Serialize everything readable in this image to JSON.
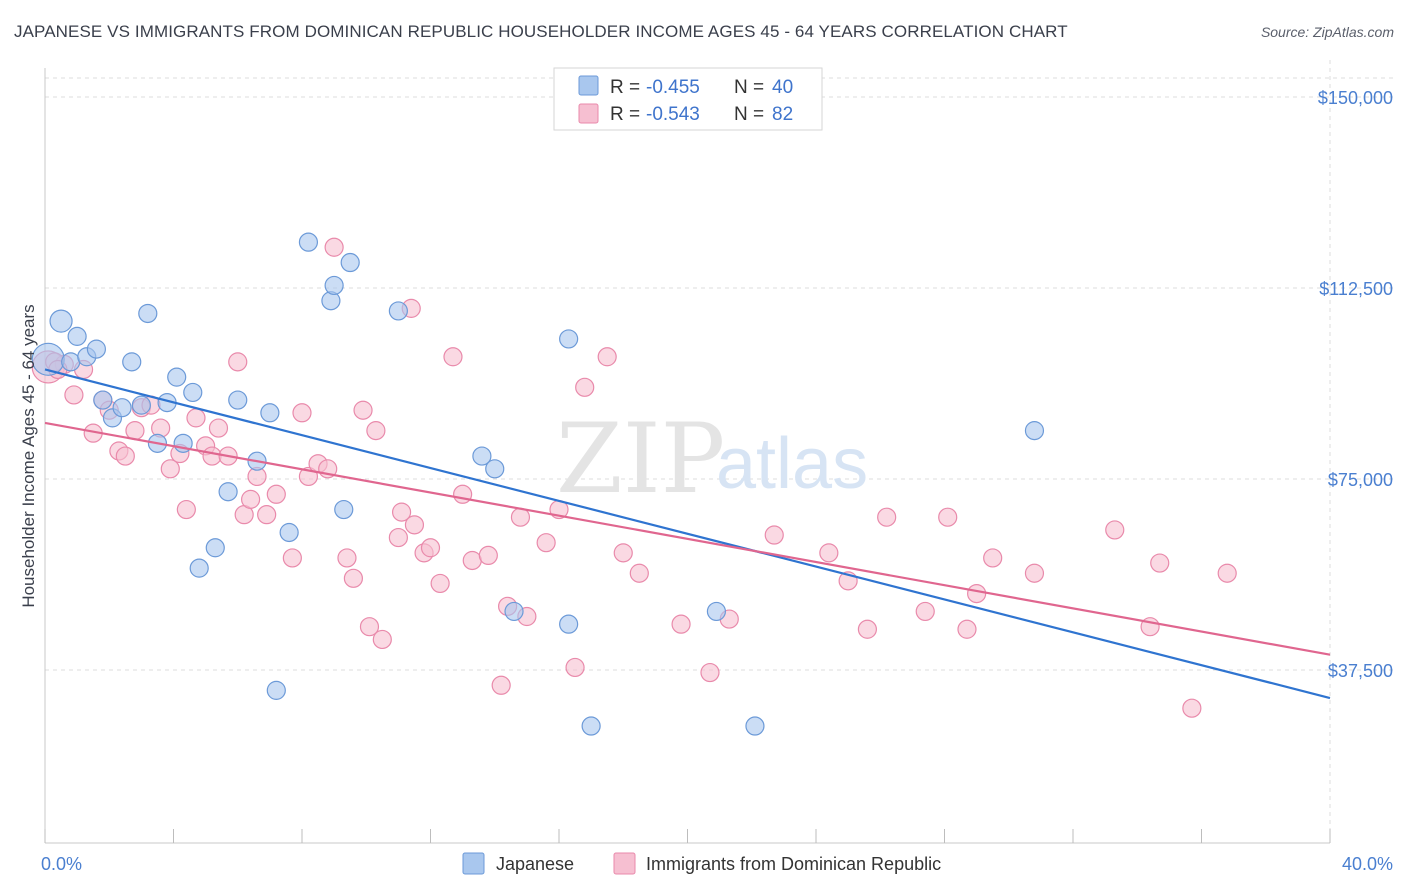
{
  "title": "JAPANESE VS IMMIGRANTS FROM DOMINICAN REPUBLIC HOUSEHOLDER INCOME AGES 45 - 64 YEARS CORRELATION CHART",
  "source": "Source: ZipAtlas.com",
  "watermark": {
    "zip": "ZIP",
    "atlas": "atlas"
  },
  "colors": {
    "blue_fill": "#a9c7ee",
    "blue_stroke": "#6c9ad8",
    "blue_line": "#2f74d0",
    "pink_fill": "#f6bfd1",
    "pink_stroke": "#e98aab",
    "pink_line": "#e0668f",
    "tick_label": "#4a7fd0",
    "grid": "#dcdcdc"
  },
  "legend": {
    "r_label": "R =",
    "n_label": "N =",
    "series": [
      {
        "r": "-0.455",
        "n": "40"
      },
      {
        "r": "-0.543",
        "n": "82"
      }
    ]
  },
  "chart_data": {
    "type": "scatter",
    "title": "JAPANESE VS IMMIGRANTS FROM DOMINICAN REPUBLIC HOUSEHOLDER INCOME AGES 45 - 64 YEARS CORRELATION CHART",
    "xlabel": "",
    "ylabel": "Householder Income Ages 45 - 64 years",
    "xlim": [
      0,
      40
    ],
    "ylim": [
      0,
      157000
    ],
    "x_tick_labels": [
      "0.0%",
      "40.0%"
    ],
    "y_ticks": [
      37500,
      75000,
      112500,
      150000
    ],
    "y_tick_labels": [
      "$37,500",
      "$75,000",
      "$112,500",
      "$150,000"
    ],
    "grid": true,
    "legend_position": "top-center",
    "series": [
      {
        "name": "Japanese",
        "r": -0.455,
        "n": 40,
        "trend": {
          "x": [
            0,
            40
          ],
          "y": [
            96500,
            32000
          ]
        },
        "points": [
          [
            0.1,
            98500,
            16
          ],
          [
            0.5,
            106000,
            11
          ],
          [
            0.8,
            98000,
            9
          ],
          [
            1.0,
            103000,
            9
          ],
          [
            1.3,
            99000,
            9
          ],
          [
            1.6,
            100500,
            9
          ],
          [
            1.8,
            90500,
            9
          ],
          [
            2.1,
            87000,
            9
          ],
          [
            2.4,
            89000,
            9
          ],
          [
            2.7,
            98000,
            9
          ],
          [
            3.0,
            89500,
            9
          ],
          [
            3.2,
            107500,
            9
          ],
          [
            3.5,
            82000,
            9
          ],
          [
            3.8,
            90000,
            9
          ],
          [
            4.1,
            95000,
            9
          ],
          [
            4.3,
            82000,
            9
          ],
          [
            4.6,
            92000,
            9
          ],
          [
            4.8,
            57500,
            9
          ],
          [
            5.3,
            61500,
            9
          ],
          [
            5.7,
            72500,
            9
          ],
          [
            6.0,
            90500,
            9
          ],
          [
            6.6,
            78500,
            9
          ],
          [
            7.0,
            88000,
            9
          ],
          [
            7.6,
            64500,
            9
          ],
          [
            7.2,
            33500,
            9
          ],
          [
            8.2,
            121500,
            9
          ],
          [
            8.9,
            110000,
            9
          ],
          [
            9.0,
            113000,
            9
          ],
          [
            9.5,
            117500,
            9
          ],
          [
            9.3,
            69000,
            9
          ],
          [
            11.0,
            108000,
            9
          ],
          [
            13.6,
            79500,
            9
          ],
          [
            14.0,
            77000,
            9
          ],
          [
            14.6,
            49000,
            9
          ],
          [
            16.3,
            102500,
            9
          ],
          [
            16.3,
            46500,
            9
          ],
          [
            17.0,
            26500,
            9
          ],
          [
            20.9,
            49000,
            9
          ],
          [
            22.1,
            26500,
            9
          ],
          [
            30.8,
            84500,
            9
          ]
        ]
      },
      {
        "name": "Immigrants from Dominican Republic",
        "r": -0.543,
        "n": 82,
        "trend": {
          "x": [
            0,
            40
          ],
          "y": [
            86000,
            40500
          ]
        },
        "points": [
          [
            0.1,
            97000,
            16
          ],
          [
            0.6,
            97500,
            9
          ],
          [
            0.9,
            91500,
            9
          ],
          [
            1.2,
            96500,
            9
          ],
          [
            1.5,
            84000,
            9
          ],
          [
            1.8,
            90500,
            9
          ],
          [
            2.0,
            88500,
            9
          ],
          [
            2.3,
            80500,
            9
          ],
          [
            2.5,
            79500,
            9
          ],
          [
            2.8,
            84500,
            9
          ],
          [
            3.0,
            89000,
            9
          ],
          [
            3.3,
            89500,
            9
          ],
          [
            3.6,
            85000,
            9
          ],
          [
            3.9,
            77000,
            9
          ],
          [
            4.2,
            80000,
            9
          ],
          [
            4.4,
            69000,
            9
          ],
          [
            4.7,
            87000,
            9
          ],
          [
            5.0,
            81500,
            9
          ],
          [
            5.2,
            79500,
            9
          ],
          [
            5.4,
            85000,
            9
          ],
          [
            5.7,
            79500,
            9
          ],
          [
            6.0,
            98000,
            9
          ],
          [
            6.2,
            68000,
            9
          ],
          [
            6.4,
            71000,
            9
          ],
          [
            6.6,
            75500,
            9
          ],
          [
            6.9,
            68000,
            9
          ],
          [
            7.2,
            72000,
            9
          ],
          [
            7.7,
            59500,
            9
          ],
          [
            8.0,
            88000,
            9
          ],
          [
            8.2,
            75500,
            9
          ],
          [
            8.5,
            78000,
            9
          ],
          [
            8.8,
            77000,
            9
          ],
          [
            9.0,
            120500,
            9
          ],
          [
            9.4,
            59500,
            9
          ],
          [
            9.6,
            55500,
            9
          ],
          [
            9.9,
            88500,
            9
          ],
          [
            10.1,
            46000,
            9
          ],
          [
            10.3,
            84500,
            9
          ],
          [
            10.5,
            43500,
            9
          ],
          [
            11.0,
            63500,
            9
          ],
          [
            11.1,
            68500,
            9
          ],
          [
            11.4,
            108500,
            9
          ],
          [
            11.5,
            66000,
            9
          ],
          [
            11.8,
            60500,
            9
          ],
          [
            12.0,
            61500,
            9
          ],
          [
            12.3,
            54500,
            9
          ],
          [
            12.7,
            99000,
            9
          ],
          [
            13.0,
            72000,
            9
          ],
          [
            13.3,
            59000,
            9
          ],
          [
            13.8,
            60000,
            9
          ],
          [
            14.2,
            34500,
            9
          ],
          [
            14.4,
            50000,
            9
          ],
          [
            14.8,
            67500,
            9
          ],
          [
            15.0,
            48000,
            9
          ],
          [
            15.6,
            62500,
            9
          ],
          [
            16.0,
            69000,
            9
          ],
          [
            16.5,
            38000,
            9
          ],
          [
            16.8,
            93000,
            9
          ],
          [
            17.5,
            99000,
            9
          ],
          [
            18.0,
            60500,
            9
          ],
          [
            18.5,
            56500,
            9
          ],
          [
            19.8,
            46500,
            9
          ],
          [
            20.7,
            37000,
            9
          ],
          [
            21.3,
            47500,
            9
          ],
          [
            22.7,
            64000,
            9
          ],
          [
            24.4,
            60500,
            9
          ],
          [
            25.0,
            55000,
            9
          ],
          [
            25.6,
            45500,
            9
          ],
          [
            26.2,
            67500,
            9
          ],
          [
            27.4,
            49000,
            9
          ],
          [
            28.1,
            67500,
            9
          ],
          [
            28.7,
            45500,
            9
          ],
          [
            29.0,
            52500,
            9
          ],
          [
            29.5,
            59500,
            9
          ],
          [
            30.8,
            56500,
            9
          ],
          [
            33.3,
            65000,
            9
          ],
          [
            34.4,
            46000,
            9
          ],
          [
            34.7,
            58500,
            9
          ],
          [
            35.7,
            30000,
            9
          ],
          [
            36.8,
            56500,
            9
          ],
          [
            0.3,
            98000,
            9
          ],
          [
            0.4,
            96500,
            9
          ]
        ]
      }
    ]
  }
}
